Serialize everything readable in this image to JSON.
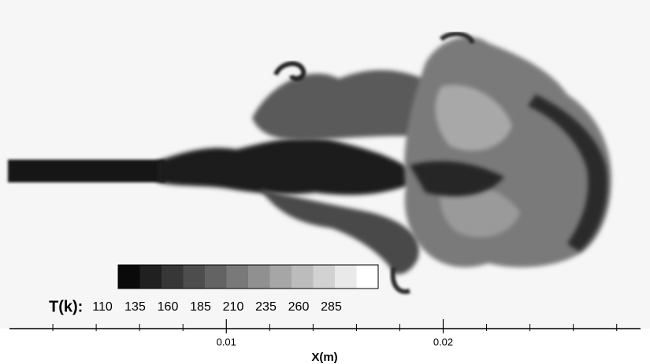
{
  "chart_data": {
    "type": "contour",
    "xlabel": "X(m)",
    "xlim": [
      0,
      0.0291
    ],
    "xticks": [
      0.01,
      0.02
    ],
    "xminorticks": [
      0.002,
      0.004,
      0.006,
      0.008,
      0.012,
      0.014,
      0.016,
      0.018,
      0.022,
      0.024,
      0.026,
      0.028
    ],
    "colorbar": {
      "label": "T(k):",
      "ticks": [
        110,
        135,
        160,
        185,
        210,
        235,
        260,
        285
      ]
    }
  }
}
